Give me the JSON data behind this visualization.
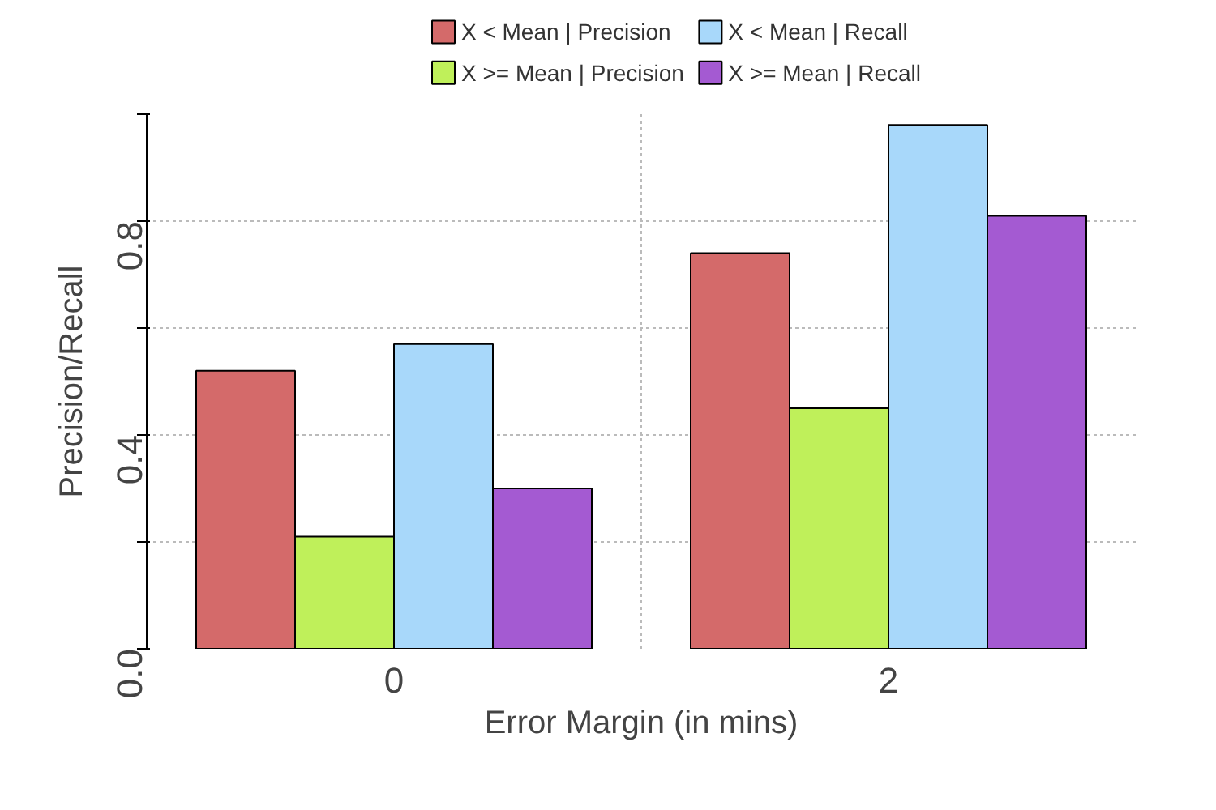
{
  "chart_data": {
    "type": "bar",
    "xlabel": "Error Margin (in mins)",
    "ylabel": "Precision/Recall",
    "categories": [
      "0",
      "2"
    ],
    "series": [
      {
        "name": "X < Mean | Precision",
        "color": "#d46a6a",
        "values": [
          0.52,
          0.74
        ]
      },
      {
        "name": "X >= Mean | Precision",
        "color": "#bff05a",
        "values": [
          0.21,
          0.45
        ]
      },
      {
        "name": "X < Mean | Recall",
        "color": "#a8d8fa",
        "values": [
          0.57,
          0.98
        ]
      },
      {
        "name": "X >= Mean | Recall",
        "color": "#a45ad2",
        "values": [
          0.3,
          0.81
        ]
      }
    ],
    "ylim": [
      0,
      1.0
    ],
    "yticks": [
      {
        "value": 0.0,
        "label": "0.0"
      },
      {
        "value": 0.2,
        "label": null
      },
      {
        "value": 0.4,
        "label": "0.4"
      },
      {
        "value": 0.6,
        "label": null
      },
      {
        "value": 0.8,
        "label": "0.8"
      },
      {
        "value": 1.0,
        "label": null
      }
    ],
    "grid": true,
    "legend": "top"
  }
}
